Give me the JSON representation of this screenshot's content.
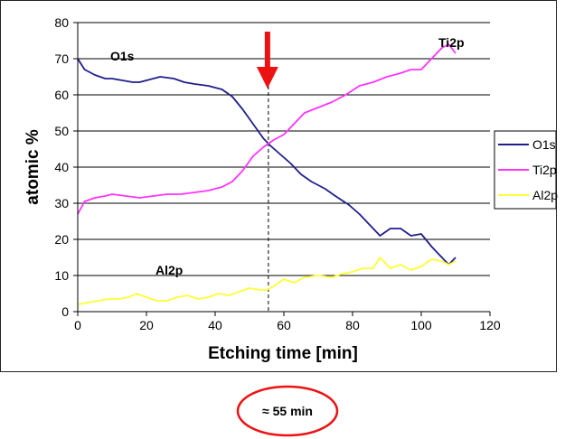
{
  "chart_data": {
    "type": "line",
    "xlabel": "Etching time [min]",
    "ylabel": "atomic %",
    "xlim": [
      0,
      120
    ],
    "ylim": [
      0,
      80
    ],
    "xticks": [
      0,
      20,
      40,
      60,
      80,
      100,
      120
    ],
    "yticks": [
      0,
      10,
      20,
      30,
      40,
      50,
      60,
      70,
      80
    ],
    "grid": "horizontal",
    "legend_position": "right",
    "series": [
      {
        "name": "O1s",
        "color": "#1f1f8c",
        "x": [
          0,
          2,
          5,
          8,
          10,
          13,
          16,
          18,
          20,
          24,
          28,
          31,
          34,
          38,
          42,
          45,
          48,
          51,
          54,
          56,
          59,
          62,
          65,
          68,
          72,
          75,
          79,
          82,
          86,
          88,
          91,
          94,
          97,
          100,
          103,
          106,
          108,
          110
        ],
        "y": [
          70,
          67,
          65.5,
          64.5,
          64.5,
          64,
          63.5,
          63.5,
          64,
          65,
          64.5,
          63.5,
          63,
          62.5,
          61.5,
          59.5,
          56,
          52,
          48,
          46,
          43.5,
          41,
          38,
          36,
          34,
          32,
          29.5,
          27,
          23,
          21,
          23,
          23,
          21,
          21.5,
          18,
          15,
          13,
          15
        ]
      },
      {
        "name": "Ti2p",
        "color": "#ff33ff",
        "x": [
          0,
          2,
          5,
          8,
          10,
          14,
          18,
          22,
          26,
          30,
          34,
          38,
          42,
          45,
          48,
          51,
          54,
          57,
          60,
          63,
          66,
          70,
          74,
          78,
          82,
          86,
          90,
          94,
          97,
          100,
          103,
          106,
          108,
          110
        ],
        "y": [
          27,
          30.5,
          31.5,
          32,
          32.5,
          32,
          31.5,
          32,
          32.5,
          32.5,
          33,
          33.5,
          34.5,
          36,
          39,
          43,
          45.5,
          47.5,
          49,
          52,
          55,
          56.5,
          58,
          60,
          62.5,
          63.5,
          65,
          66,
          67,
          67,
          70,
          73,
          74,
          71.5
        ]
      },
      {
        "name": "Al2p",
        "color": "#ffff33",
        "x": [
          0,
          3,
          6,
          9,
          12,
          15,
          17,
          20,
          23,
          26,
          29,
          32,
          35,
          38,
          41,
          44,
          47,
          50,
          53,
          55,
          57,
          60,
          63,
          66,
          70,
          74,
          77,
          80,
          83,
          86,
          88,
          91,
          94,
          97,
          100,
          103,
          106,
          108,
          110
        ],
        "y": [
          2,
          2.5,
          3,
          3.5,
          3.5,
          4,
          5,
          4,
          3,
          3,
          4,
          4.5,
          3.5,
          4,
          5,
          4.5,
          5.5,
          6.5,
          6,
          6,
          7,
          9,
          8,
          9.5,
          10,
          9.5,
          10.5,
          11,
          12,
          12,
          15,
          12,
          13,
          11.5,
          12.5,
          14.5,
          14,
          13,
          14
        ]
      }
    ],
    "annotations": {
      "o1s_label": "O1s",
      "ti2p_label": "Ti2p",
      "al2p_label": "Al2p",
      "marker_x": 55.5,
      "marker_color": "#ee1111",
      "marker_caption": "≈ 55 min"
    }
  }
}
